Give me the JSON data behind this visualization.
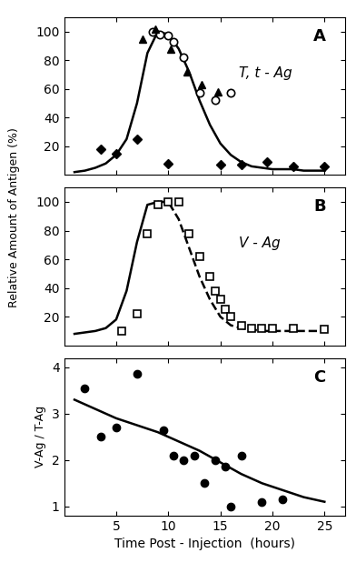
{
  "panel_A_curve_x": [
    1,
    2,
    3,
    4,
    5,
    6,
    7,
    8,
    9,
    10,
    11,
    12,
    13,
    14,
    15,
    16,
    17,
    18,
    19,
    20,
    21,
    22,
    23,
    24,
    25
  ],
  "panel_A_curve_y": [
    2,
    3,
    5,
    8,
    14,
    25,
    50,
    85,
    100,
    98,
    88,
    72,
    52,
    35,
    22,
    14,
    9,
    6,
    5,
    4,
    4,
    4,
    3,
    3,
    3
  ],
  "panel_A_open_circles_x": [
    8.5,
    9.2,
    10.0,
    10.5,
    11.5,
    13.0,
    14.5,
    16.0
  ],
  "panel_A_open_circles_y": [
    100,
    98,
    97,
    93,
    82,
    57,
    52,
    57
  ],
  "panel_A_filled_triangles_x": [
    7.5,
    8.8,
    10.2,
    11.8,
    13.2,
    14.8
  ],
  "panel_A_filled_triangles_y": [
    95,
    102,
    88,
    72,
    63,
    58
  ],
  "panel_A_filled_diamonds_x": [
    3.5,
    5.0,
    7.0,
    10.0,
    15.0,
    17.0,
    19.5,
    22.0,
    25.0
  ],
  "panel_A_filled_diamonds_y": [
    18,
    15,
    25,
    8,
    7,
    7,
    9,
    6,
    6
  ],
  "panel_A_label": "T, t - Ag",
  "panel_A_ylabel": "Relative Amount of Antigen (%)",
  "panel_A_ylim": [
    0,
    110
  ],
  "panel_A_yticks": [
    20,
    40,
    60,
    80,
    100
  ],
  "panel_B_curve_x": [
    1,
    2,
    3,
    4,
    5,
    6,
    7,
    8,
    9,
    10,
    11,
    12,
    13,
    14,
    15,
    16,
    17,
    18,
    19,
    20,
    21,
    22,
    23,
    24,
    25
  ],
  "panel_B_curve_y": [
    8,
    9,
    10,
    12,
    18,
    38,
    72,
    98,
    100,
    100,
    88,
    68,
    48,
    32,
    20,
    14,
    12,
    11,
    10,
    10,
    10,
    10,
    10,
    10,
    10
  ],
  "panel_B_open_squares_x": [
    5.5,
    7.0,
    8.0,
    9.0,
    10.0,
    11.0,
    12.0,
    13.0,
    14.0,
    14.5,
    15.0,
    15.5,
    16.0,
    17.0,
    18.0,
    19.0,
    20.0,
    22.0,
    25.0
  ],
  "panel_B_open_squares_y": [
    10,
    22,
    78,
    98,
    100,
    100,
    78,
    62,
    48,
    38,
    32,
    25,
    20,
    14,
    12,
    12,
    12,
    12,
    11
  ],
  "panel_B_label": "V - Ag",
  "panel_B_ylim": [
    0,
    110
  ],
  "panel_B_yticks": [
    20,
    40,
    60,
    80,
    100
  ],
  "panel_C_curve_x": [
    1,
    3,
    5,
    7,
    9,
    11,
    13,
    15,
    17,
    19,
    21,
    23,
    25
  ],
  "panel_C_curve_y": [
    3.3,
    3.1,
    2.9,
    2.75,
    2.6,
    2.4,
    2.2,
    1.95,
    1.7,
    1.5,
    1.35,
    1.2,
    1.1
  ],
  "panel_C_filled_circles_x": [
    2.0,
    3.5,
    5.0,
    7.0,
    9.5,
    10.5,
    11.5,
    12.5,
    13.5,
    14.5,
    15.5,
    16.0,
    17.0,
    19.0,
    21.0
  ],
  "panel_C_filled_circles_y": [
    3.55,
    2.5,
    2.7,
    3.85,
    2.65,
    2.1,
    2.0,
    2.1,
    1.5,
    2.0,
    1.85,
    1.0,
    2.1,
    1.1,
    1.15
  ],
  "panel_C_label": "C",
  "panel_C_ylabel": "V-Ag / T-Ag",
  "panel_C_ylim": [
    0.8,
    4.2
  ],
  "panel_C_yticks": [
    1,
    2,
    3,
    4
  ],
  "xlabel": "Time Post - Injection  (hours)",
  "xlim": [
    0,
    27
  ],
  "xticks": [
    5,
    10,
    15,
    20,
    25
  ],
  "line_color": "#000000",
  "bg_color": "#ffffff",
  "fig_width": 3.92,
  "fig_height": 6.3
}
